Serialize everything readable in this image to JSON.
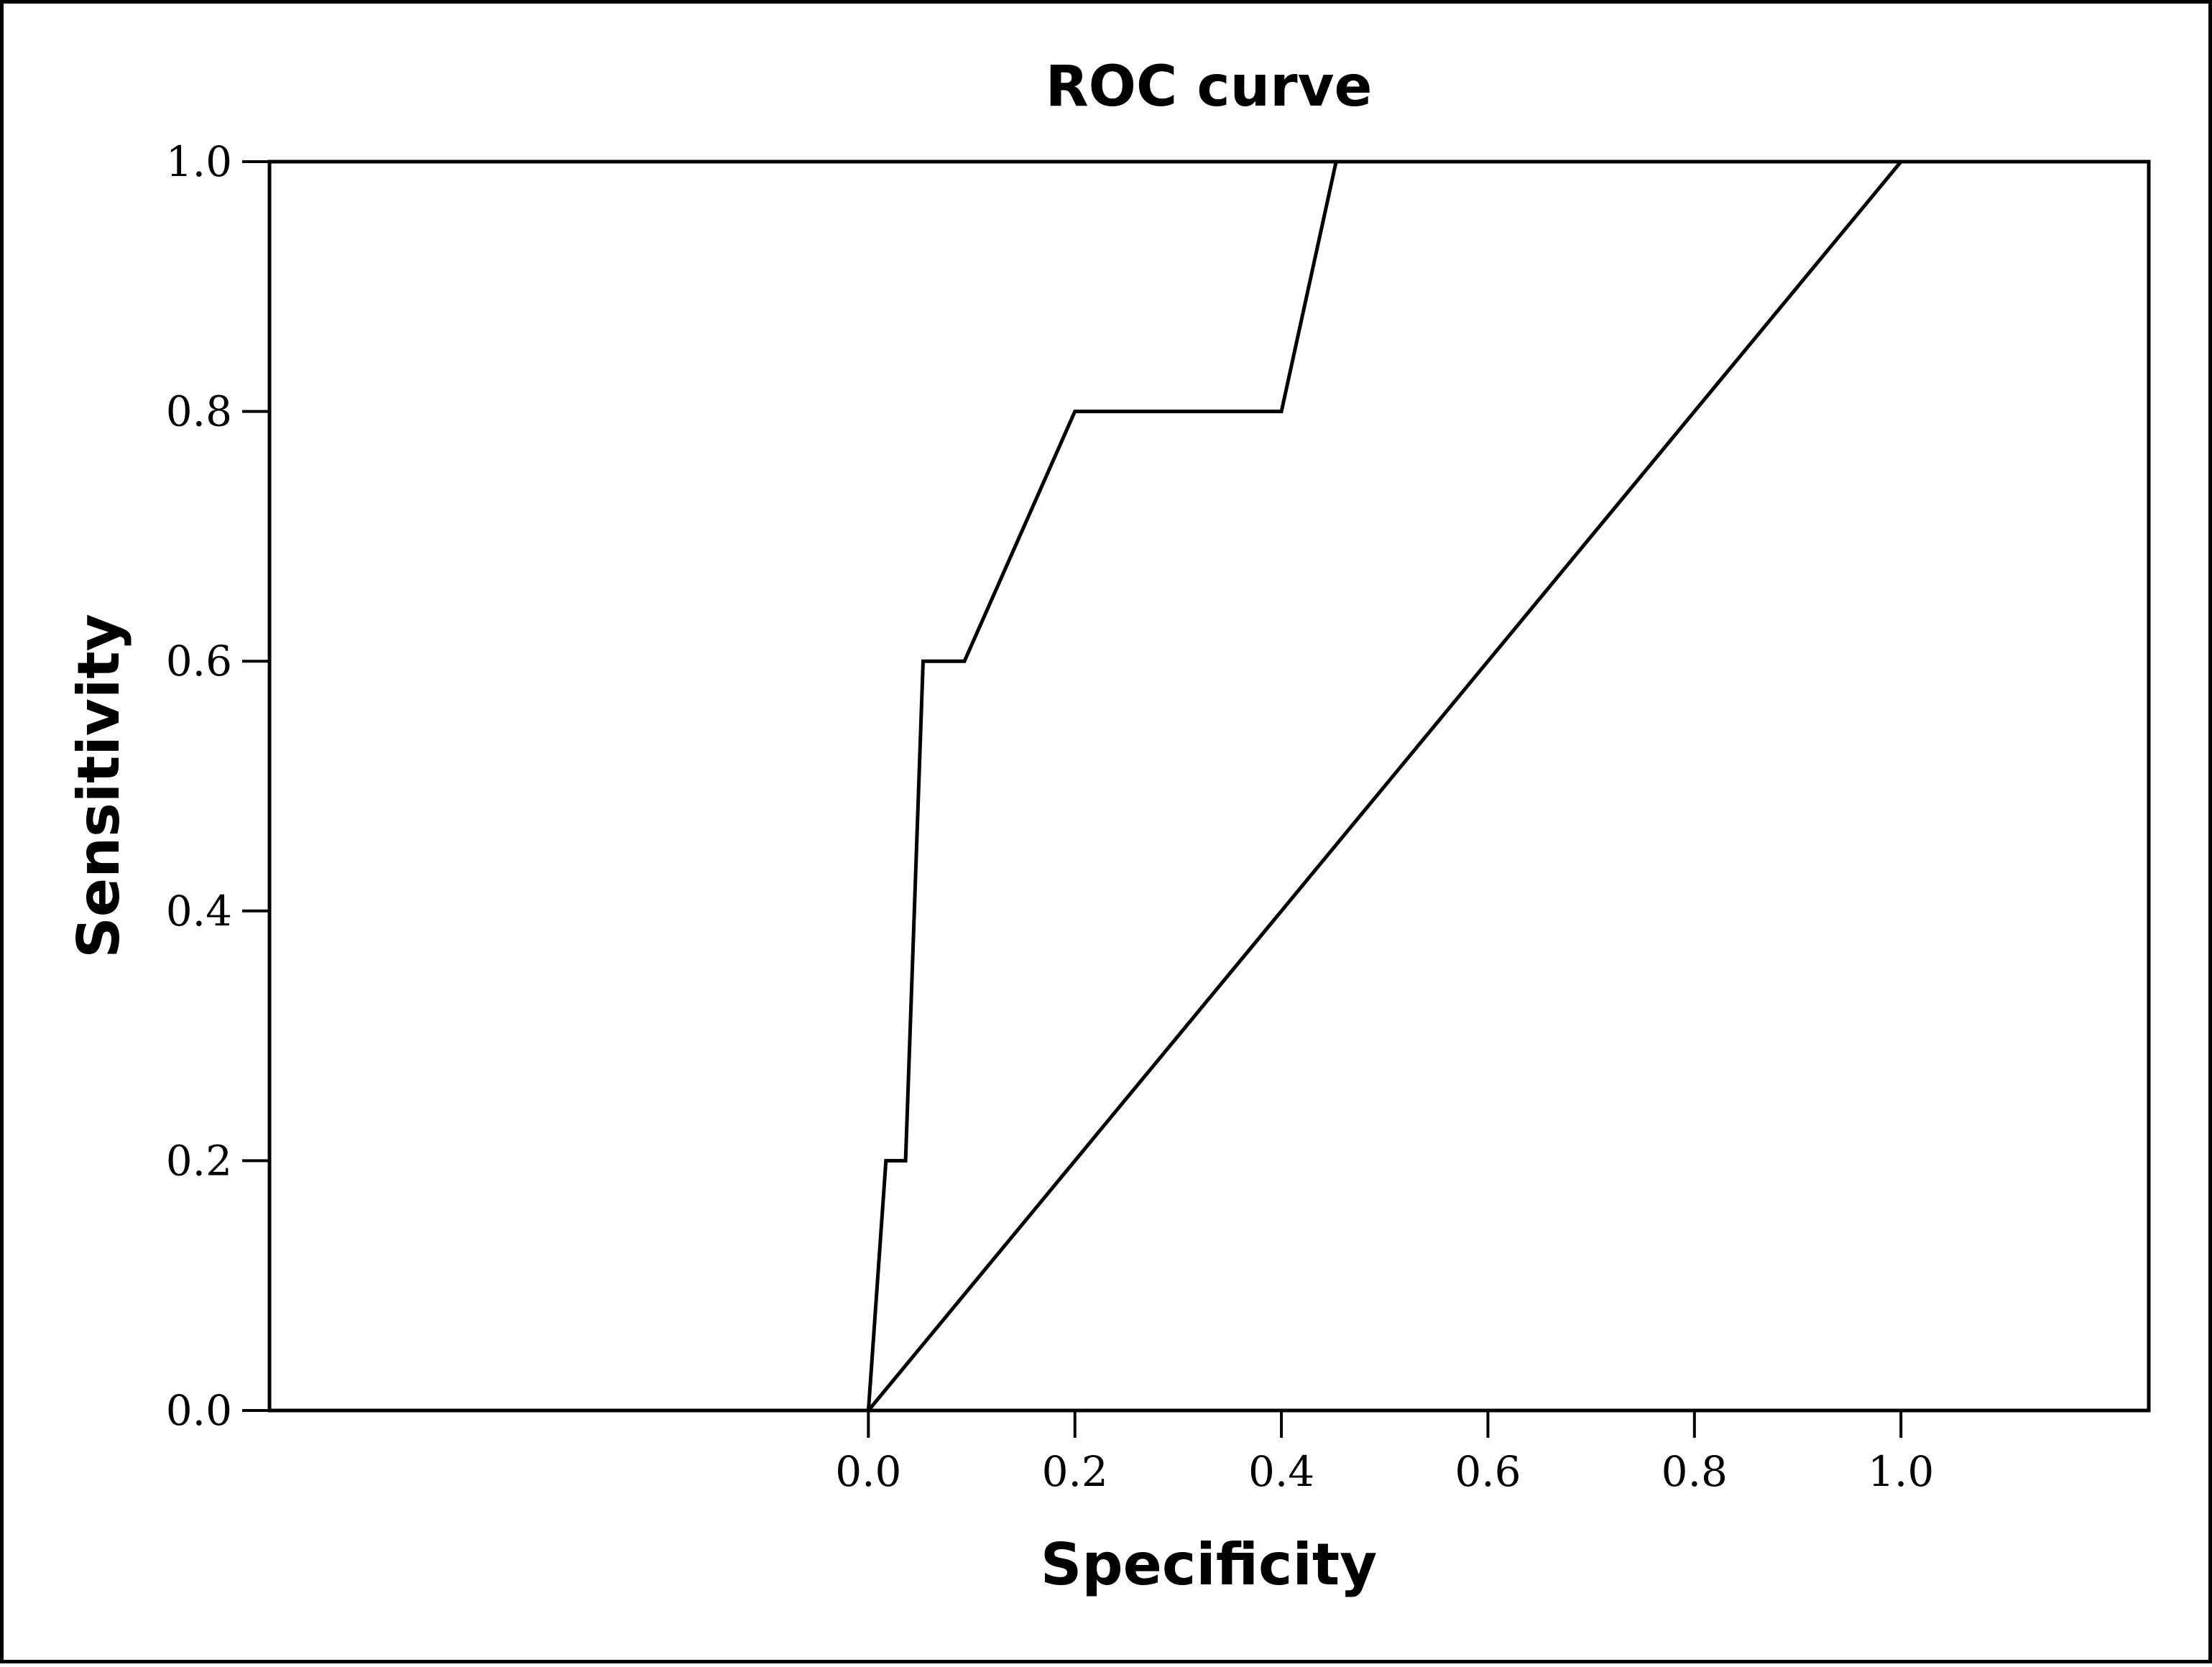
{
  "chart_data": {
    "type": "line",
    "title": "ROC curve",
    "xlabel": "Specificity",
    "ylabel": "Sensitivity",
    "xlim": [
      -0.58,
      1.24
    ],
    "ylim": [
      0,
      1
    ],
    "x_ticks": [
      "0.0",
      "0.2",
      "0.4",
      "0.6",
      "0.8",
      "1.0"
    ],
    "y_ticks": [
      "0.0",
      "0.2",
      "0.4",
      "0.6",
      "0.8",
      "1.0"
    ],
    "grid": false,
    "series": [
      {
        "color": "#000000",
        "x": [
          0.0,
          0.017,
          0.036,
          0.053,
          0.093,
          0.2,
          0.4,
          0.453
        ],
        "y": [
          0.0,
          0.2,
          0.2,
          0.6,
          0.6,
          0.8,
          0.8,
          1.0
        ]
      },
      {
        "color": "#000000",
        "x": [
          0.0,
          1.0
        ],
        "y": [
          0.0,
          1.0
        ]
      }
    ]
  }
}
